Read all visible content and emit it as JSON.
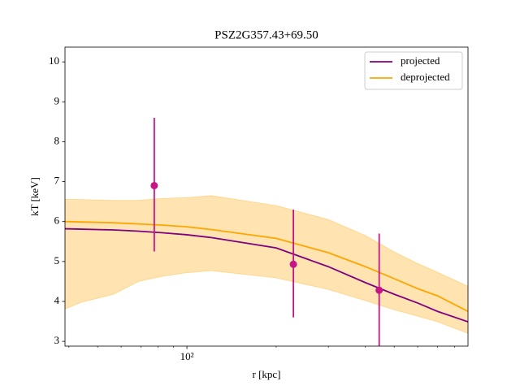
{
  "chart_data": {
    "type": "line",
    "title": "PSZ2G357.43+69.50",
    "xlabel": "r [kpc]",
    "ylabel": "kT [keV]",
    "xscale": "log",
    "xlim": [
      38.8,
      887
    ],
    "ylim": [
      2.88,
      10.37
    ],
    "xticks": [
      {
        "value": 100,
        "label": "10²"
      }
    ],
    "xminorticks": [
      40,
      50,
      60,
      70,
      80,
      90,
      200,
      300,
      400,
      500,
      600,
      700,
      800
    ],
    "yticks": [
      3,
      4,
      5,
      6,
      7,
      8,
      9,
      10
    ],
    "x": [
      38.8,
      44.1,
      56.6,
      68.6,
      82.8,
      100,
      120.8,
      200,
      300,
      400,
      500,
      600,
      700,
      887
    ],
    "series": [
      {
        "name": "projected",
        "color": "#800080",
        "values": [
          5.82,
          5.81,
          5.79,
          5.76,
          5.72,
          5.67,
          5.6,
          5.34,
          4.87,
          4.47,
          4.18,
          3.96,
          3.75,
          3.49
        ]
      },
      {
        "name": "deprojected",
        "color": "#ffa500",
        "values": [
          6.0,
          5.99,
          5.97,
          5.94,
          5.91,
          5.87,
          5.8,
          5.58,
          5.22,
          4.87,
          4.57,
          4.32,
          4.14,
          3.75
        ]
      }
    ],
    "band": {
      "color": "#ffa500",
      "lower": [
        3.81,
        3.98,
        4.18,
        4.5,
        4.63,
        4.72,
        4.77,
        4.59,
        4.3,
        4.02,
        3.79,
        3.63,
        3.49,
        3.2
      ],
      "upper": [
        6.56,
        6.55,
        6.53,
        6.53,
        6.58,
        6.6,
        6.65,
        6.4,
        6.05,
        5.65,
        5.24,
        4.95,
        4.73,
        4.38
      ]
    },
    "points": {
      "color": "#c71585",
      "x": [
        77.6,
        228.6,
        445
      ],
      "values": [
        6.9,
        4.93,
        4.28
      ],
      "errors": [
        [
          1.65,
          1.7
        ],
        [
          1.33,
          1.37
        ],
        [
          1.4,
          1.42
        ]
      ]
    },
    "legend": "upper right"
  }
}
